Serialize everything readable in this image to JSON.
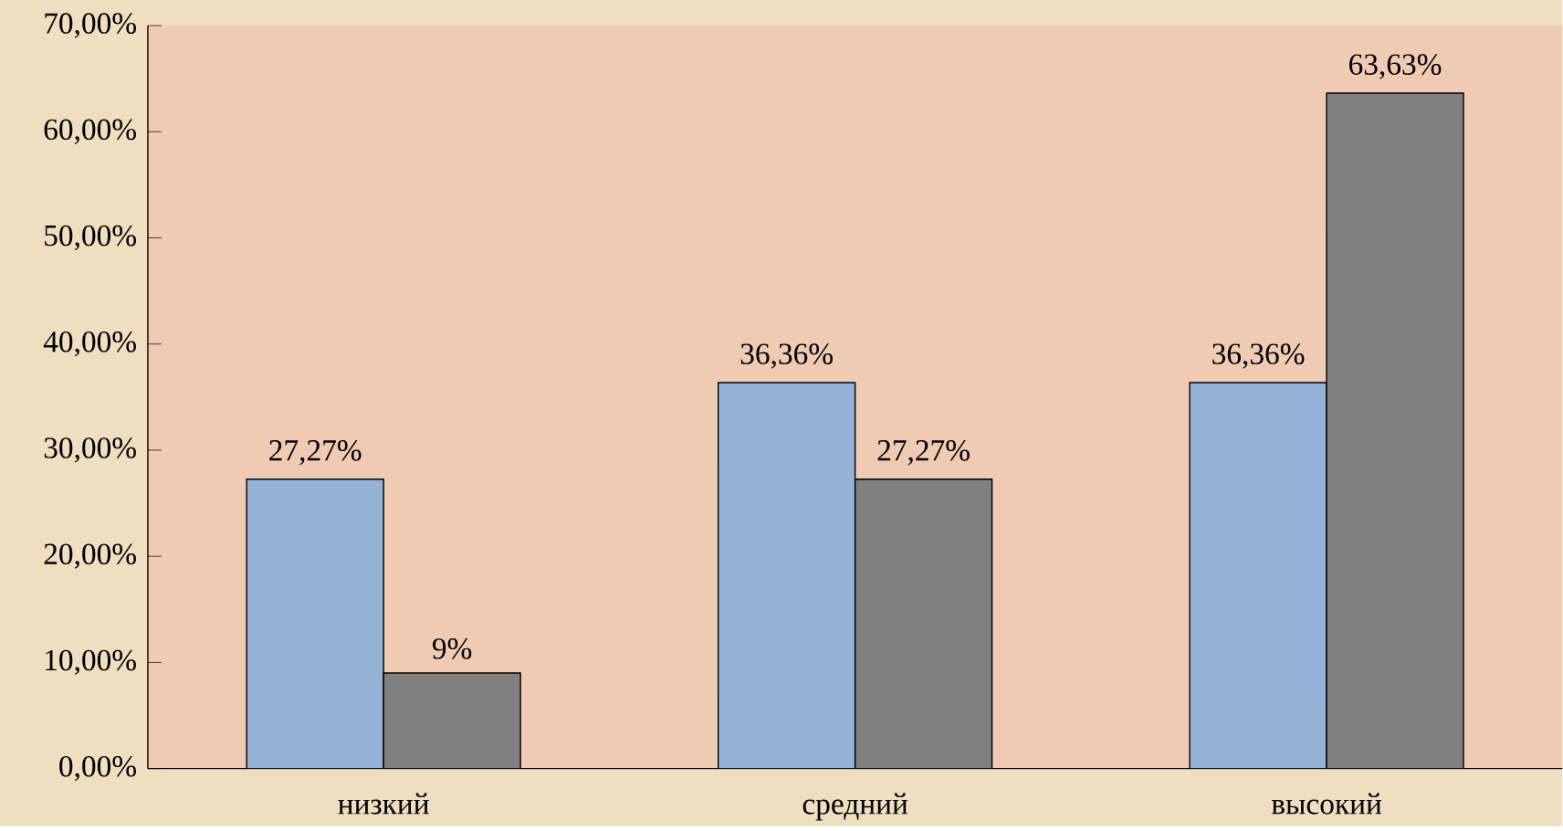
{
  "chart_data": {
    "type": "bar",
    "categories": [
      "низкий",
      "средний",
      "высокий"
    ],
    "yticks": [
      {
        "value": 0,
        "label": "0,00%"
      },
      {
        "value": 10,
        "label": "10,00%"
      },
      {
        "value": 20,
        "label": "20,00%"
      },
      {
        "value": 30,
        "label": "30,00%"
      },
      {
        "value": 40,
        "label": "40,00%"
      },
      {
        "value": 50,
        "label": "50,00%"
      },
      {
        "value": 60,
        "label": "60,00%"
      },
      {
        "value": 70,
        "label": "70,00%"
      }
    ],
    "series": [
      {
        "color": "#95b3d7",
        "values": [
          27.27,
          36.36,
          36.36
        ],
        "value_labels": [
          "27,27%",
          "36,36%",
          "36,36%"
        ]
      },
      {
        "color": "#808080",
        "values": [
          9,
          27.27,
          63.63
        ],
        "value_labels": [
          "9%",
          "27,27%",
          "63,63%"
        ]
      }
    ],
    "ylim": [
      0,
      70
    ]
  }
}
